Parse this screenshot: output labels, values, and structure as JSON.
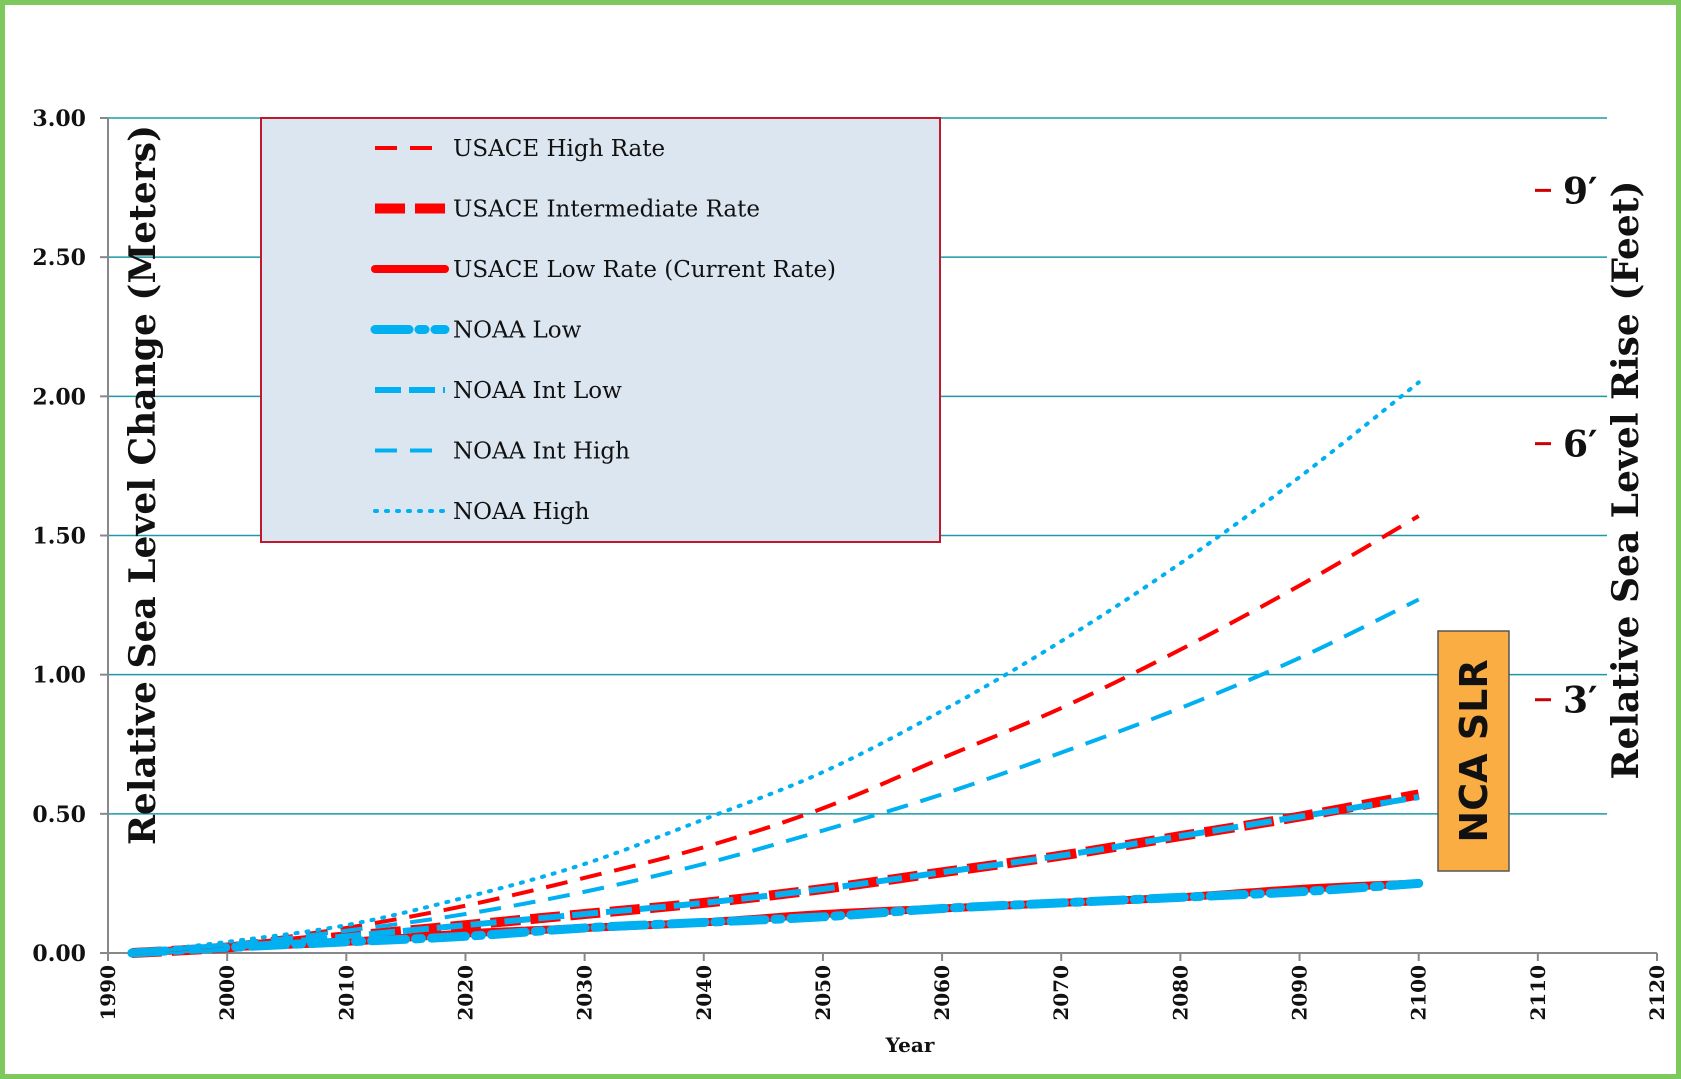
{
  "chart_data": {
    "type": "line",
    "title": "",
    "xlabel": "Year",
    "ylabel": "Relative Sea Level Change (Meters)",
    "y2label": "Relative Sea Level Rise (Feet)",
    "xlim": [
      1990,
      2120
    ],
    "ylim": [
      0,
      3
    ],
    "x_ticks": [
      1990,
      2000,
      2010,
      2020,
      2030,
      2040,
      2050,
      2060,
      2070,
      2080,
      2090,
      2100,
      2110,
      2120
    ],
    "y_ticks": [
      "0.00",
      "0.50",
      "1.00",
      "1.50",
      "2.00",
      "2.50",
      "3.00"
    ],
    "y_tick_values": [
      0,
      0.5,
      1.0,
      1.5,
      2.0,
      2.5,
      3.0
    ],
    "grid": true,
    "legend_position": "top-left",
    "series": [
      {
        "name": "USACE High Rate",
        "color": "#ff0000",
        "style": "dashed-thin",
        "x": [
          1992,
          2000,
          2010,
          2020,
          2030,
          2040,
          2050,
          2060,
          2070,
          2080,
          2090,
          2100
        ],
        "y": [
          0.0,
          0.03,
          0.09,
          0.17,
          0.27,
          0.38,
          0.52,
          0.7,
          0.88,
          1.09,
          1.32,
          1.57
        ]
      },
      {
        "name": "USACE Intermediate Rate",
        "color": "#ff0000",
        "style": "dashed-thick",
        "x": [
          1992,
          2000,
          2010,
          2020,
          2030,
          2040,
          2050,
          2060,
          2070,
          2080,
          2090,
          2100
        ],
        "y": [
          0.0,
          0.02,
          0.06,
          0.1,
          0.14,
          0.18,
          0.23,
          0.29,
          0.35,
          0.42,
          0.49,
          0.57
        ]
      },
      {
        "name": "USACE Low Rate (Current Rate)",
        "color": "#ff0000",
        "style": "solid-thick",
        "x": [
          1992,
          2000,
          2010,
          2020,
          2030,
          2040,
          2050,
          2060,
          2070,
          2080,
          2090,
          2100
        ],
        "y": [
          0.0,
          0.02,
          0.04,
          0.07,
          0.09,
          0.11,
          0.14,
          0.16,
          0.18,
          0.2,
          0.23,
          0.25
        ]
      },
      {
        "name": "NOAA Low",
        "color": "#00b0f0",
        "style": "dash-dot-thick",
        "x": [
          1992,
          2000,
          2010,
          2020,
          2030,
          2040,
          2050,
          2060,
          2070,
          2080,
          2090,
          2100
        ],
        "y": [
          0.0,
          0.02,
          0.04,
          0.06,
          0.09,
          0.11,
          0.13,
          0.16,
          0.18,
          0.2,
          0.22,
          0.25
        ]
      },
      {
        "name": "NOAA Int Low",
        "color": "#00b0f0",
        "style": "dashed-medium",
        "x": [
          1992,
          2000,
          2010,
          2020,
          2030,
          2040,
          2050,
          2060,
          2070,
          2080,
          2090,
          2100
        ],
        "y": [
          0.0,
          0.02,
          0.06,
          0.1,
          0.14,
          0.18,
          0.23,
          0.29,
          0.35,
          0.42,
          0.49,
          0.56
        ]
      },
      {
        "name": "NOAA Int High",
        "color": "#00b0f0",
        "style": "dashed-thin",
        "x": [
          1992,
          2000,
          2010,
          2020,
          2030,
          2040,
          2050,
          2060,
          2070,
          2080,
          2090,
          2100
        ],
        "y": [
          0.0,
          0.03,
          0.08,
          0.14,
          0.22,
          0.32,
          0.44,
          0.57,
          0.72,
          0.88,
          1.06,
          1.27
        ]
      },
      {
        "name": "NOAA High",
        "color": "#00b0f0",
        "style": "dotted",
        "x": [
          1992,
          2000,
          2010,
          2020,
          2030,
          2040,
          2050,
          2060,
          2070,
          2080,
          2090,
          2100
        ],
        "y": [
          0.0,
          0.04,
          0.1,
          0.2,
          0.32,
          0.48,
          0.65,
          0.87,
          1.12,
          1.4,
          1.71,
          2.05
        ]
      }
    ],
    "feet_markers": [
      {
        "label": "9′",
        "meters": 2.74
      },
      {
        "label": "6′",
        "meters": 1.83
      },
      {
        "label": "3′",
        "meters": 0.91
      }
    ],
    "annotation": {
      "text": "NCA  SLR",
      "fill": "#f9ad42"
    }
  }
}
